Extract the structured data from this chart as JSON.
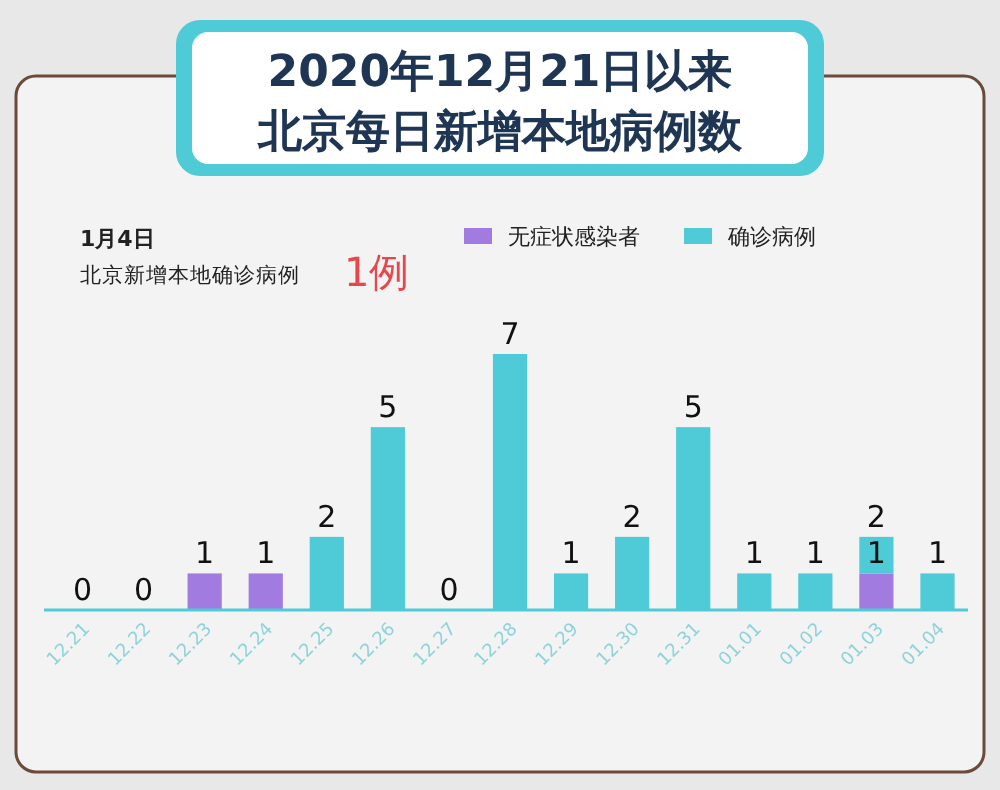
{
  "chart_data": {
    "type": "bar",
    "title": "2020年12月21日以来",
    "subtitle": "北京每日新增本地病例数",
    "annotations": [
      "1月4日",
      "北京新增本地确诊病例",
      "1例"
    ],
    "categories": [
      "12.21",
      "12.22",
      "12.23",
      "12.24",
      "12.25",
      "12.26",
      "12.27",
      "12.28",
      "12.29",
      "12.30",
      "12.31",
      "01.01",
      "01.02",
      "01.03",
      "01.04"
    ],
    "stacked": true,
    "series": [
      {
        "name": "无症状感染者",
        "color": "#a27be0",
        "values": [
          null,
          null,
          1,
          1,
          null,
          null,
          null,
          null,
          null,
          null,
          null,
          null,
          null,
          1,
          null
        ],
        "value_labels": [
          null,
          null,
          "1",
          "1",
          null,
          null,
          null,
          null,
          null,
          null,
          null,
          null,
          null,
          "1",
          null
        ]
      },
      {
        "name": "确诊病例",
        "color": "#4ecbd6",
        "values": [
          0,
          0,
          null,
          null,
          2,
          5,
          0,
          7,
          1,
          2,
          5,
          1,
          1,
          1,
          1
        ],
        "value_labels": [
          "0",
          "0",
          null,
          null,
          "2",
          "5",
          "0",
          "7",
          "1",
          "2",
          "5",
          "1",
          "1",
          null,
          "1"
        ]
      }
    ],
    "totals": [
      null,
      null,
      null,
      null,
      null,
      null,
      null,
      null,
      null,
      null,
      null,
      null,
      null,
      "2",
      null
    ],
    "legend": "top"
  }
}
